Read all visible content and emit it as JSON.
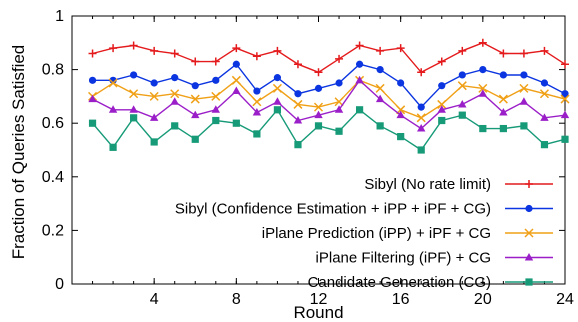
{
  "chart_data": {
    "type": "line",
    "xlabel": "Round",
    "ylabel": "Fraction of Queries Satisfied",
    "xlim": [
      0,
      24
    ],
    "ylim": [
      0,
      1
    ],
    "x_ticks": [
      4,
      8,
      12,
      16,
      20,
      24
    ],
    "y_ticks": [
      0,
      0.2,
      0.4,
      0.6,
      0.8,
      1
    ],
    "y_tick_labels": [
      "0",
      "0.2",
      "0.4",
      "0.6",
      "0.8",
      "1"
    ],
    "grid": false,
    "legend_position": "right",
    "x": [
      1,
      2,
      3,
      4,
      5,
      6,
      7,
      8,
      9,
      10,
      11,
      12,
      13,
      14,
      15,
      16,
      17,
      18,
      19,
      20,
      21,
      22,
      23,
      24
    ],
    "series": [
      {
        "name": "Sibyl (No rate limit)",
        "color": "#e41a1c",
        "marker": "plus",
        "values": [
          0.86,
          0.88,
          0.89,
          0.87,
          0.86,
          0.83,
          0.83,
          0.88,
          0.85,
          0.87,
          0.82,
          0.79,
          0.84,
          0.89,
          0.87,
          0.88,
          0.79,
          0.83,
          0.87,
          0.9,
          0.86,
          0.86,
          0.87,
          0.82
        ]
      },
      {
        "name": "Sibyl (Confidence Estimation + iPP + iPF + CG)",
        "color": "#0b35e0",
        "marker": "circle",
        "values": [
          0.76,
          0.76,
          0.78,
          0.75,
          0.77,
          0.74,
          0.76,
          0.82,
          0.72,
          0.77,
          0.71,
          0.73,
          0.75,
          0.82,
          0.8,
          0.75,
          0.66,
          0.74,
          0.78,
          0.8,
          0.78,
          0.78,
          0.75,
          0.71
        ]
      },
      {
        "name": "iPlane Prediction (iPP) + iPF + CG",
        "color": "#f0a016",
        "marker": "cross",
        "values": [
          0.7,
          0.75,
          0.71,
          0.7,
          0.71,
          0.69,
          0.7,
          0.76,
          0.68,
          0.73,
          0.67,
          0.66,
          0.68,
          0.76,
          0.73,
          0.65,
          0.62,
          0.67,
          0.74,
          0.73,
          0.69,
          0.73,
          0.71,
          0.69
        ]
      },
      {
        "name": "iPlane Filtering (iPF) + CG",
        "color": "#9b1fc8",
        "marker": "triangle",
        "values": [
          0.69,
          0.65,
          0.65,
          0.62,
          0.68,
          0.63,
          0.65,
          0.72,
          0.64,
          0.68,
          0.61,
          0.63,
          0.65,
          0.76,
          0.69,
          0.63,
          0.58,
          0.65,
          0.67,
          0.71,
          0.64,
          0.68,
          0.62,
          0.63
        ]
      },
      {
        "name": "Candidate Generation (CG)",
        "color": "#169a78",
        "marker": "square",
        "values": [
          0.6,
          0.51,
          0.62,
          0.53,
          0.59,
          0.54,
          0.61,
          0.6,
          0.56,
          0.65,
          0.52,
          0.59,
          0.57,
          0.65,
          0.59,
          0.55,
          0.5,
          0.61,
          0.63,
          0.58,
          0.58,
          0.59,
          0.52,
          0.54
        ]
      }
    ]
  }
}
